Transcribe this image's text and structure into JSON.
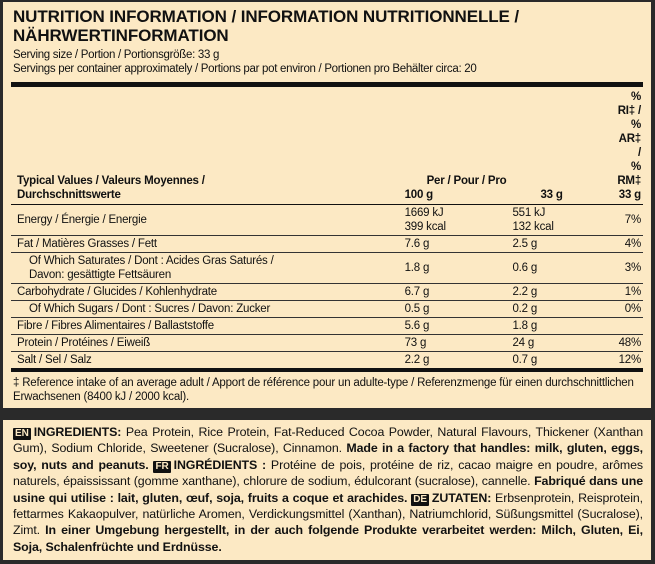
{
  "title": "NUTRITION INFORMATION / INFORMATION NUTRITIONNELLE / NÄHRWERTINFORMATION",
  "serving_size": "Serving size / Portion / Portionsgröße: 33 g",
  "servings_per_container": "Servings per container approximately / Portions par pot environ / Portionen pro Behälter circa: 20",
  "table": {
    "header": {
      "label_line1": "Typical Values / Valeurs Moyennes /",
      "label_line2": "Durchschnittswerte",
      "per": "Per / Pour / Pro",
      "col1": "100 g",
      "col2": "33 g",
      "ri_line1": "% RI‡ / % AR‡ /",
      "ri_line2": "% RM‡ 33 g"
    },
    "rows": [
      {
        "label": "Energy / Énergie / Energie",
        "v100": "1669 kJ",
        "v100b": "399 kcal",
        "v33": "551 kJ",
        "v33b": "132 kcal",
        "ri": "7%"
      },
      {
        "label": "Fat / Matières Grasses / Fett",
        "v100": "7.6 g",
        "v33": "2.5 g",
        "ri": "4%"
      },
      {
        "label": "Of Which Saturates / Dont : Acides Gras Saturés /",
        "label2": "Davon: gesättigte Fettsäuren",
        "v100": "1.8 g",
        "v33": "0.6 g",
        "ri": "3%"
      },
      {
        "label": "Carbohydrate / Glucides / Kohlenhydrate",
        "v100": "6.7 g",
        "v33": "2.2 g",
        "ri": "1%"
      },
      {
        "label": "Of Which Sugars / Dont : Sucres / Davon: Zucker",
        "v100": "0.5 g",
        "v33": "0.2 g",
        "ri": "0%"
      },
      {
        "label": "Fibre / Fibres Alimentaires / Ballaststoffe",
        "v100": "5.6 g",
        "v33": "1.8 g",
        "ri": ""
      },
      {
        "label": "Protein / Protéines / Eiweiß",
        "v100": "73 g",
        "v33": "24 g",
        "ri": "48%"
      },
      {
        "label": "Salt / Sel / Salz",
        "v100": "2.2 g",
        "v33": "0.7 g",
        "ri": "12%"
      }
    ]
  },
  "footnote": "‡ Reference intake of an average adult / Apport de référence pour un adulte-type / Referenzmenge für einen durchschnittlichen Erwachsenen (8400 kJ / 2000 kcal).",
  "ingredients": {
    "en_flag": "EN",
    "en_heading": "INGREDIENTS:",
    "en_text": " Pea Protein, Rice Protein, Fat-Reduced Cocoa Powder, Natural Flavours, Thickener (Xanthan Gum), Sodium Chloride, Sweetener (Sucralose), Cinnamon. ",
    "en_allergen": "Made in a factory that handles: milk, gluten, eggs, soy, nuts and peanuts.",
    "fr_flag": "FR",
    "fr_heading": "INGRÉDIENTS :",
    "fr_text": " Protéine de pois, protéine de riz, cacao maigre en poudre, arômes naturels, épaississant (gomme xanthane), chlorure de sodium, édulcorant (sucralose), cannelle. ",
    "fr_allergen": "Fabriqué dans une usine qui utilise : lait, gluten, œuf, soja, fruits a coque et arachides.",
    "de_flag": "DE",
    "de_heading": "ZUTATEN:",
    "de_text": " Erbsenprotein, Reisprotein, fettarmes Kakaopulver, natürliche Aromen, Verdickungsmittel (Xanthan), Natriumchlorid, Süßungsmittel (Sucralose), Zimt. ",
    "de_allergen": "In einer Umgebung hergestellt, in der auch folgende Produkte verarbeitet werden: Milch, Gluten, Ei, Soja, Schalenfrüchte und Erdnüsse."
  }
}
